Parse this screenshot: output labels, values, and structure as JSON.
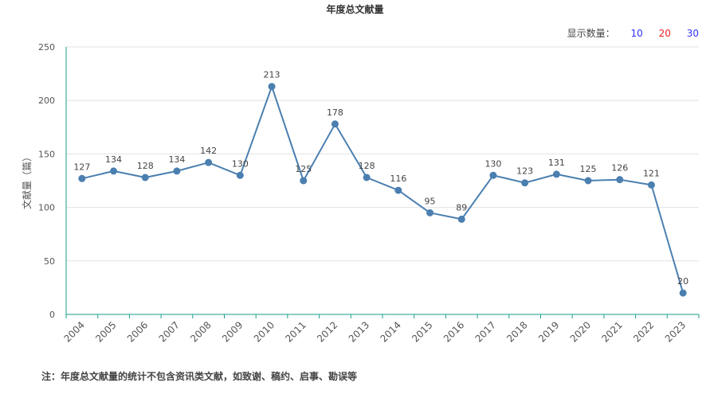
{
  "title": "年度总文献量",
  "count_selector": {
    "label": "显示数量：",
    "options": [
      "10",
      "20",
      "30"
    ]
  },
  "footnote": "注：年度总文献量的统计不包含资讯类文献，如致谢、稿约、启事、勘误等",
  "colors": {
    "line": "#4a7fb0",
    "axis": "#199e88",
    "grid": "#e3e3e3",
    "text": "#555555"
  },
  "chart_data": {
    "type": "line",
    "title": "年度总文献量",
    "xlabel": "",
    "ylabel": "文献量（篇）",
    "ylim": [
      0,
      250
    ],
    "yticks": [
      0,
      50,
      100,
      150,
      200,
      250
    ],
    "grid": true,
    "categories": [
      "2004",
      "2005",
      "2006",
      "2007",
      "2008",
      "2009",
      "2010",
      "2011",
      "2012",
      "2013",
      "2014",
      "2015",
      "2016",
      "2017",
      "2018",
      "2019",
      "2020",
      "2021",
      "2022",
      "2023"
    ],
    "values": [
      127,
      134,
      128,
      134,
      142,
      130,
      213,
      125,
      178,
      128,
      116,
      95,
      89,
      130,
      123,
      131,
      125,
      126,
      121,
      20
    ]
  }
}
